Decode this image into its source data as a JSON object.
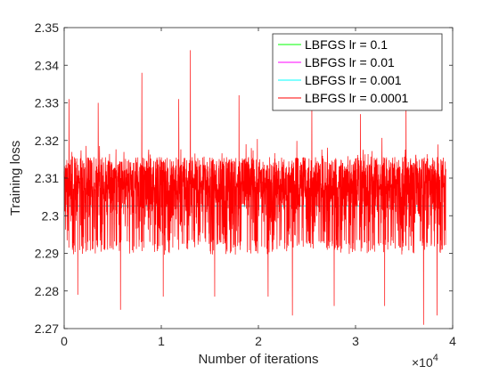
{
  "chart_data": {
    "type": "line",
    "xlabel": "Number of iterations",
    "ylabel": "Training loss",
    "x_multiplier": "×10",
    "x_multiplier_exponent": "4",
    "xlim": [
      0,
      4
    ],
    "ylim": [
      2.27,
      2.35
    ],
    "xticks": [
      "0",
      "1",
      "2",
      "3",
      "4"
    ],
    "yticks": [
      "2.27",
      "2.28",
      "2.29",
      "2.3",
      "2.31",
      "2.32",
      "2.33",
      "2.34",
      "2.35"
    ],
    "legend_position": "top-right",
    "series": [
      {
        "name": "LBFGS lr = 0.1",
        "color": "#00ff00",
        "x": [
          0,
          3.93
        ],
        "y": [
          2.3026,
          2.3026
        ]
      },
      {
        "name": "LBFGS lr = 0.01",
        "color": "#ff00ff",
        "x": [
          0,
          3.93
        ],
        "y": [
          2.3026,
          2.3026
        ]
      },
      {
        "name": "LBFGS lr = 0.001",
        "color": "#00ffff",
        "x": [
          0,
          3.93
        ],
        "y": [
          2.3026,
          2.3026
        ]
      },
      {
        "name": "LBFGS lr = 0.0001",
        "color": "#ff0000",
        "x_start": 0,
        "x_end": 3.93,
        "center": 2.3026,
        "dense_band": [
          2.2915,
          2.3195
        ],
        "x": [
          0.05,
          0.14,
          0.35,
          0.58,
          0.8,
          1.02,
          1.18,
          1.3,
          1.55,
          1.8,
          2.1,
          2.35,
          2.55,
          2.78,
          3.05,
          3.3,
          3.52,
          3.7,
          3.84
        ],
        "y": [
          2.331,
          2.279,
          2.33,
          2.275,
          2.338,
          2.2785,
          2.331,
          2.344,
          2.2785,
          2.332,
          2.2785,
          2.2735,
          2.33,
          2.276,
          2.327,
          2.276,
          2.331,
          2.271,
          2.2735
        ]
      }
    ]
  }
}
